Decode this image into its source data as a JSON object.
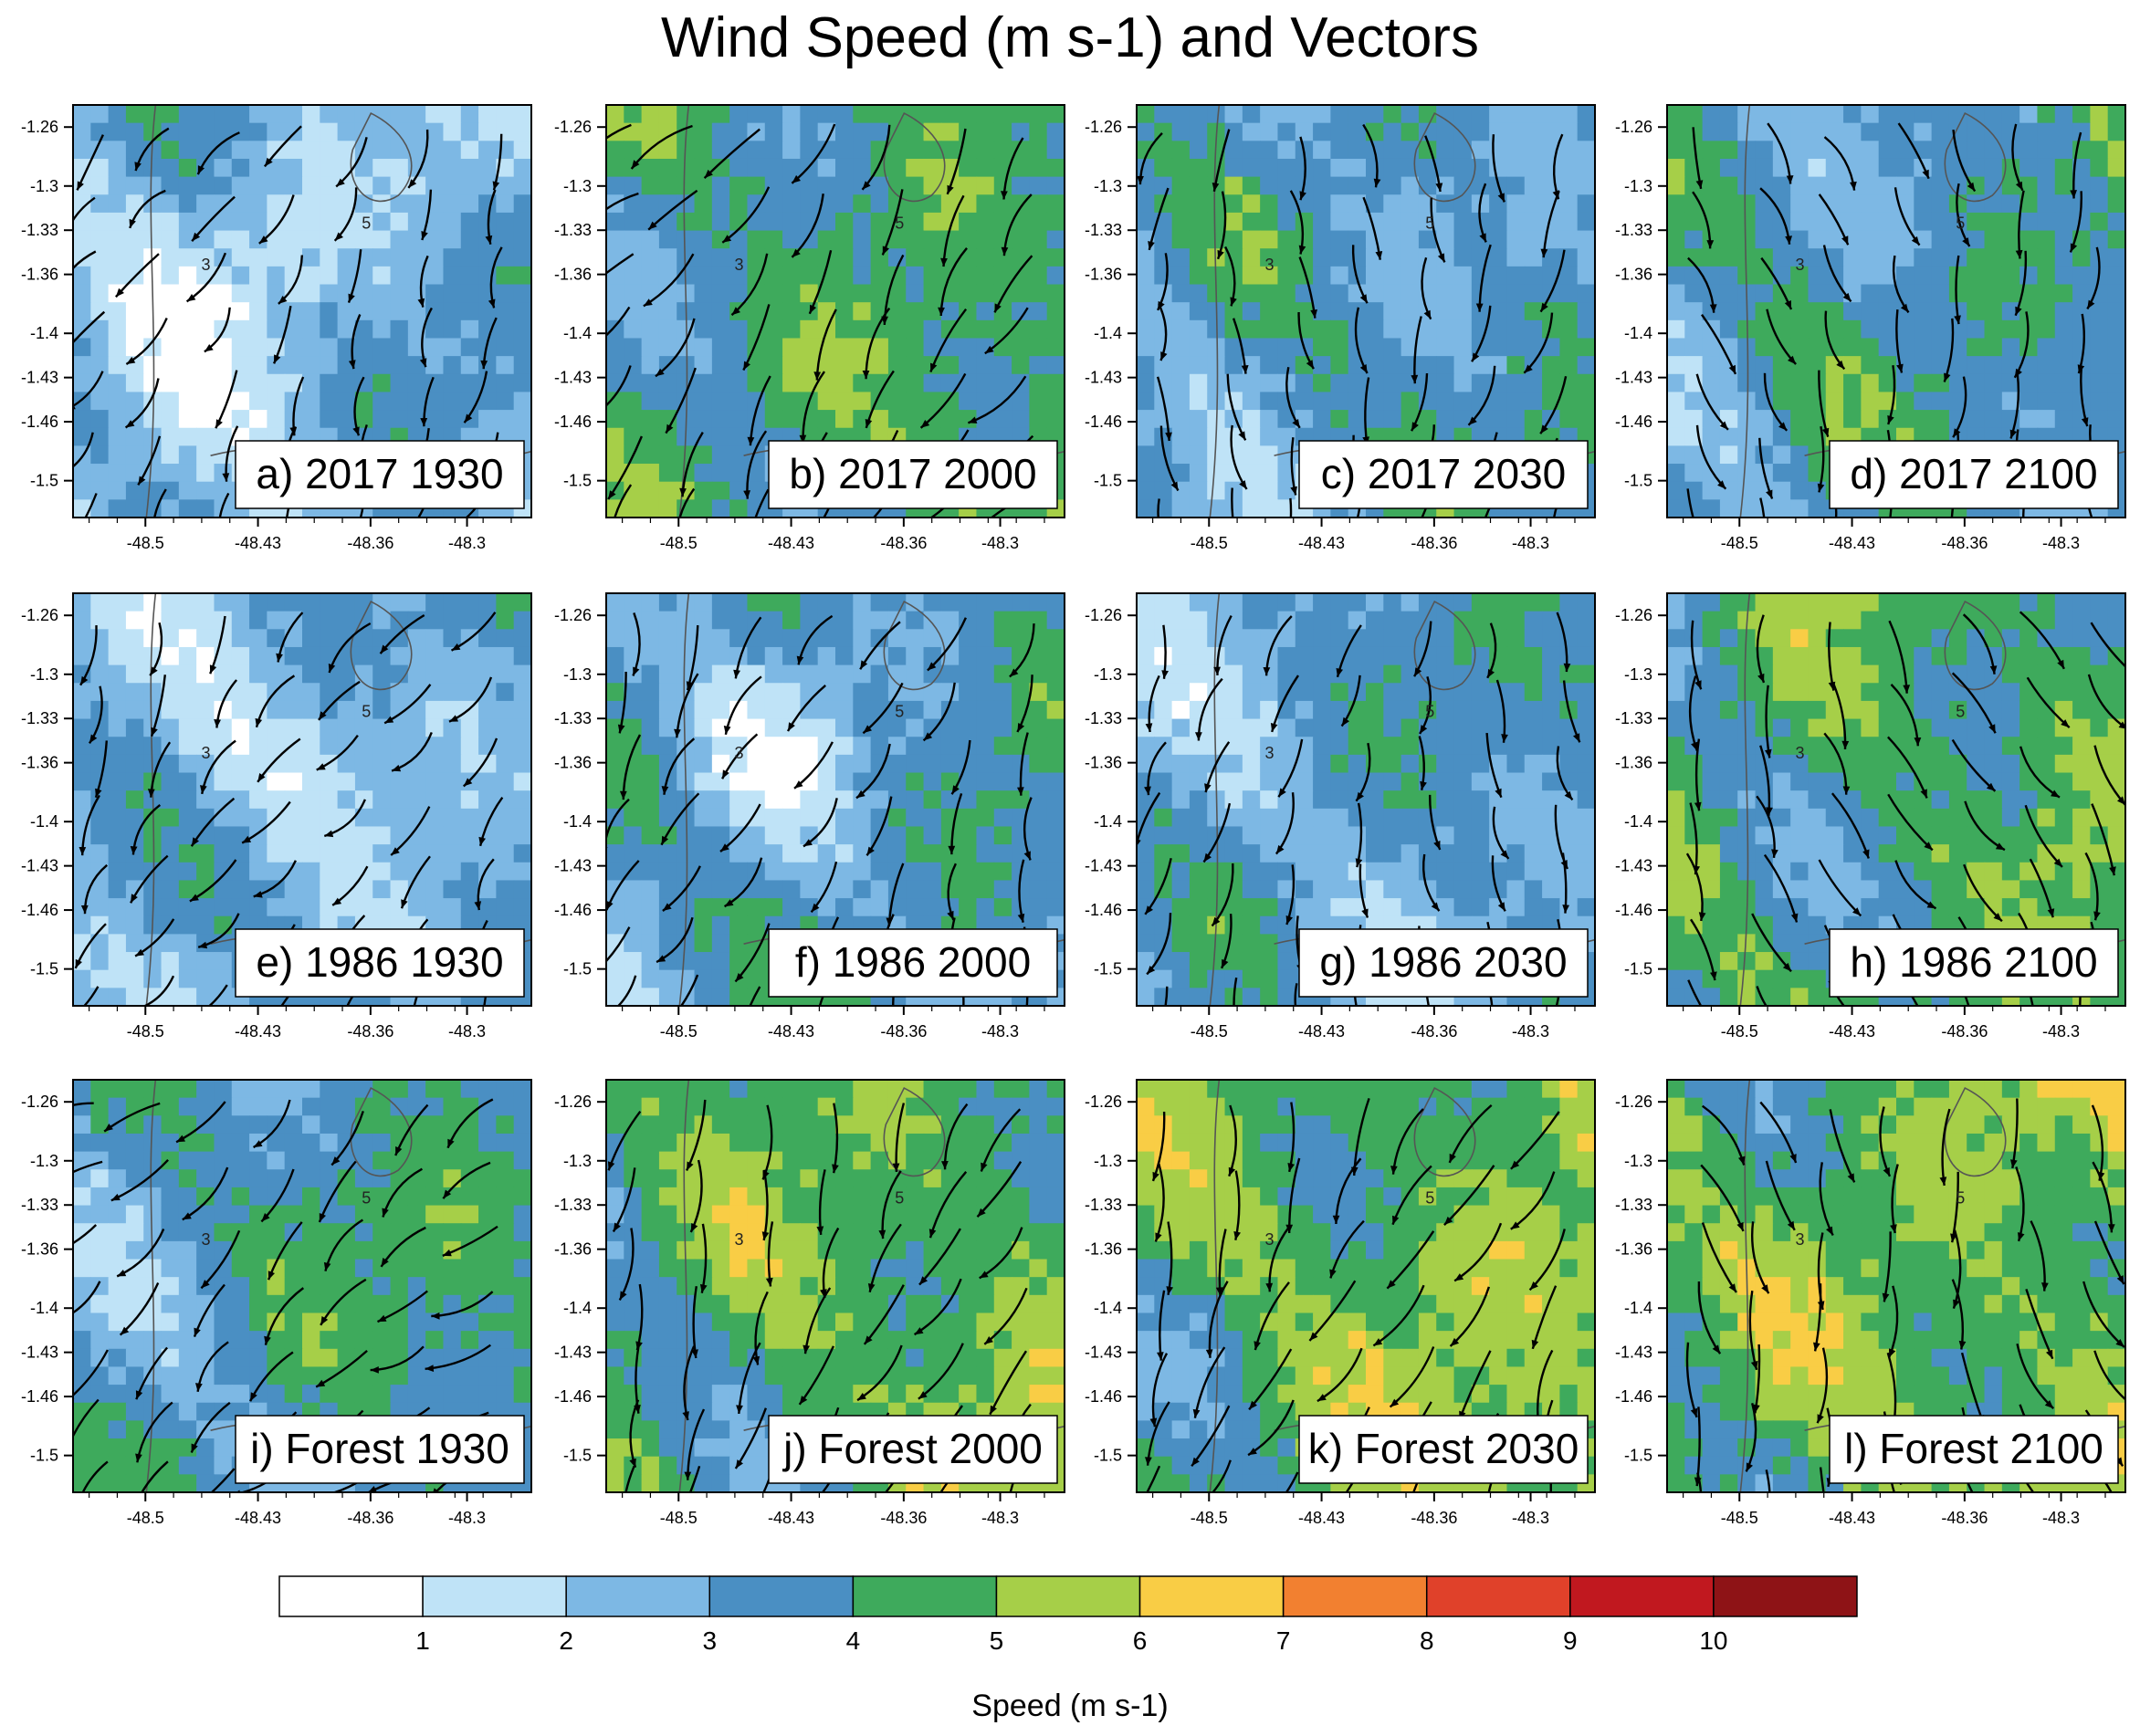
{
  "chart_data": {
    "type": "heatmap",
    "title": "Wind Speed (m s-1) and Vectors",
    "variable": "wind speed with wind vectors and contour lines",
    "x_ticks": [
      "-48.5",
      "-48.43",
      "-48.36",
      "-48.3"
    ],
    "x_tick_values": [
      -48.5,
      -48.43,
      -48.36,
      -48.3
    ],
    "y_ticks": [
      "-1.26",
      "-1.3",
      "-1.33",
      "-1.36",
      "-1.4",
      "-1.43",
      "-1.46",
      "-1.5"
    ],
    "y_tick_values": [
      -1.26,
      -1.3,
      -1.33,
      -1.36,
      -1.4,
      -1.43,
      -1.46,
      -1.5
    ],
    "xlim": [
      -48.545,
      -48.26
    ],
    "ylim": [
      -1.525,
      -1.245
    ],
    "rows": [
      "2017",
      "1986",
      "Forest"
    ],
    "columns": [
      "1930",
      "2000",
      "2030",
      "2100"
    ],
    "panels": [
      {
        "label": "a) 2017 1930",
        "scenario": "2017",
        "time": "1930",
        "mean_speed": 2.6,
        "wind_dir_deg": 205
      },
      {
        "label": "b) 2017 2000",
        "scenario": "2017",
        "time": "2000",
        "mean_speed": 4.3,
        "wind_dir_deg": 215
      },
      {
        "label": "c) 2017 2030",
        "scenario": "2017",
        "time": "2030",
        "mean_speed": 3.4,
        "wind_dir_deg": 185
      },
      {
        "label": "d) 2017 2100",
        "scenario": "2017",
        "time": "2100",
        "mean_speed": 3.6,
        "wind_dir_deg": 170
      },
      {
        "label": "e) 1986 1930",
        "scenario": "1986",
        "time": "1930",
        "mean_speed": 2.8,
        "wind_dir_deg": 210
      },
      {
        "label": "f) 1986 2000",
        "scenario": "1986",
        "time": "2000",
        "mean_speed": 3.4,
        "wind_dir_deg": 200
      },
      {
        "label": "g) 1986 2030",
        "scenario": "1986",
        "time": "2030",
        "mean_speed": 3.1,
        "wind_dir_deg": 185
      },
      {
        "label": "h) 1986 2100",
        "scenario": "1986",
        "time": "2100",
        "mean_speed": 4.3,
        "wind_dir_deg": 160
      },
      {
        "label": "i) Forest 1930",
        "scenario": "Forest",
        "time": "1930",
        "mean_speed": 3.7,
        "wind_dir_deg": 230
      },
      {
        "label": "j) Forest 2000",
        "scenario": "Forest",
        "time": "2000",
        "mean_speed": 4.6,
        "wind_dir_deg": 200
      },
      {
        "label": "k) Forest 2030",
        "scenario": "Forest",
        "time": "2030",
        "mean_speed": 4.8,
        "wind_dir_deg": 200
      },
      {
        "label": "l) Forest 2100",
        "scenario": "Forest",
        "time": "2100",
        "mean_speed": 4.9,
        "wind_dir_deg": 165
      }
    ],
    "colorbar": {
      "label": "Speed (m s-1)",
      "levels": [
        1,
        2,
        3,
        4,
        5,
        6,
        7,
        8,
        9,
        10
      ],
      "colors": [
        "#ffffff",
        "#bfe3f7",
        "#7db8e4",
        "#4a8fc3",
        "#3eaa5c",
        "#a6cf48",
        "#f9cd45",
        "#f28030",
        "#e0412a",
        "#c1181f",
        "#8e1316"
      ]
    },
    "contour_labels": [
      "3",
      "5"
    ],
    "legend": "bottom"
  }
}
